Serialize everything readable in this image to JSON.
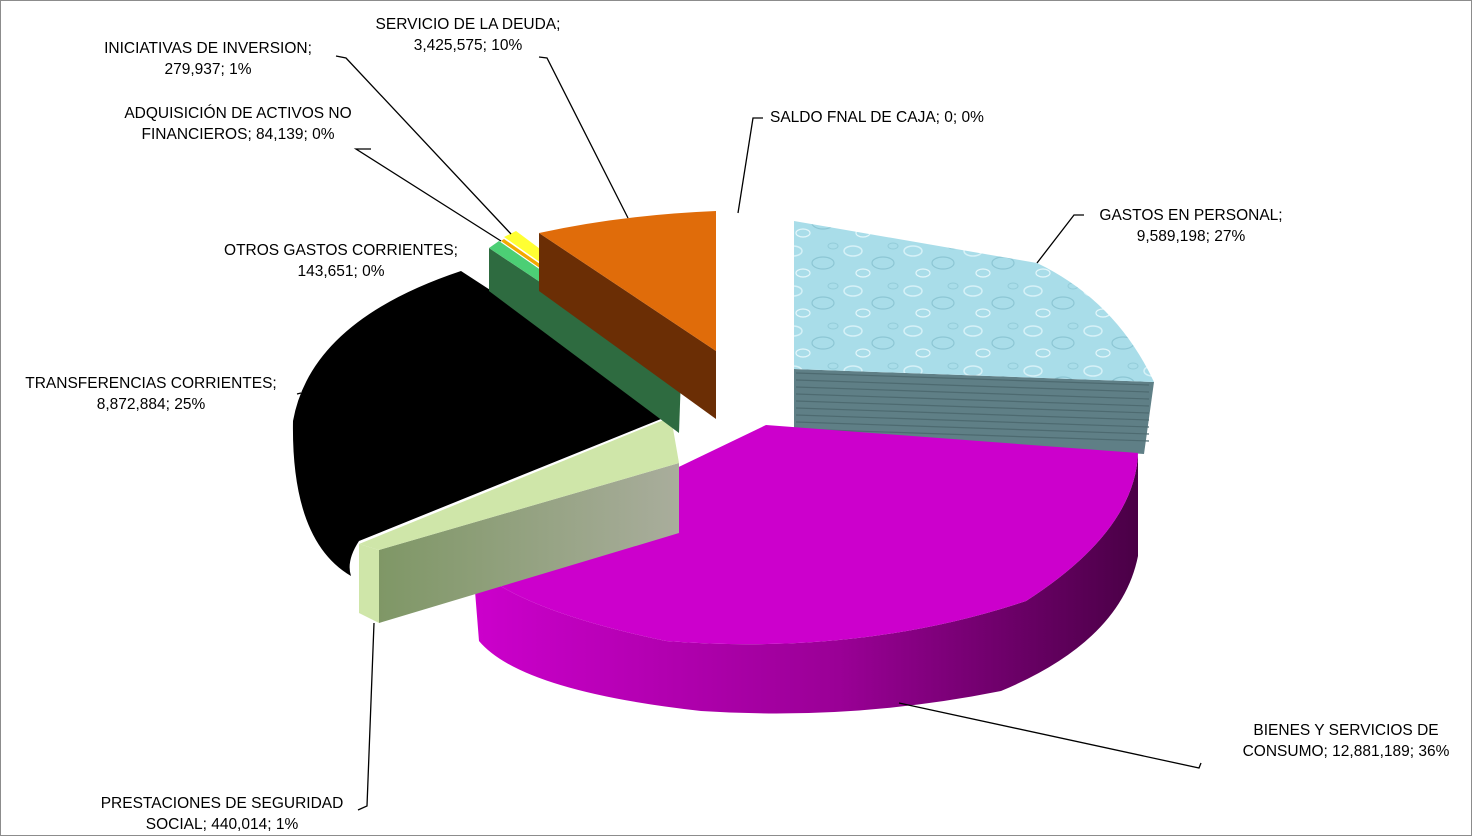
{
  "chart_data": {
    "type": "pie",
    "style": "3d exploded pie",
    "title": "",
    "legend": "none",
    "slices": [
      {
        "name": "GASTOS EN PERSONAL",
        "value": 9589198,
        "percent": 27,
        "label_lines": [
          "GASTOS EN PERSONAL;",
          "9,589,198; 27%"
        ],
        "color": "#a9dde9",
        "side_color": "#5f7f86"
      },
      {
        "name": "BIENES Y SERVICIOS DE CONSUMO",
        "value": 12881189,
        "percent": 36,
        "label_lines": [
          "BIENES Y SERVICIOS DE",
          "CONSUMO; 12,881,189; 36%"
        ],
        "color": "#cc00cc",
        "side_color": "#5c0058"
      },
      {
        "name": "PRESTACIONES DE SEGURIDAD SOCIAL",
        "value": 440014,
        "percent": 1,
        "label_lines": [
          "PRESTACIONES DE SEGURIDAD",
          "SOCIAL; 440,014; 1%"
        ],
        "color": "#cfe6a9",
        "side_color": "#8c9f78"
      },
      {
        "name": "TRANSFERENCIAS CORRIENTES",
        "value": 8872884,
        "percent": 25,
        "label_lines": [
          "TRANSFERENCIAS CORRIENTES;",
          "8,872,884; 25%"
        ],
        "color": "#000000",
        "side_color": "#000000"
      },
      {
        "name": "OTROS GASTOS CORRIENTES",
        "value": 143651,
        "percent": 0,
        "label_lines": [
          "OTROS GASTOS CORRIENTES;",
          "143,651; 0%"
        ],
        "color": "#4ccf75",
        "side_color": "#2e6b40"
      },
      {
        "name": "ADQUISICIÓN DE ACTIVOS NO FINANCIEROS",
        "value": 84139,
        "percent": 0,
        "label_lines": [
          "ADQUISICIÓN DE ACTIVOS NO",
          "FINANCIEROS; 84,139; 0%"
        ],
        "color": "#f2a900",
        "side_color": "#8a6000"
      },
      {
        "name": "INICIATIVAS DE INVERSION",
        "value": 279937,
        "percent": 1,
        "label_lines": [
          "INICIATIVAS DE INVERSION;",
          "279,937; 1%"
        ],
        "color": "#ffff33",
        "side_color": "#9a9a10"
      },
      {
        "name": "SERVICIO DE LA DEUDA",
        "value": 3425575,
        "percent": 10,
        "label_lines": [
          "SERVICIO DE LA DEUDA;",
          "3,425,575; 10%"
        ],
        "color": "#e06c0a",
        "side_color": "#6b2e05"
      },
      {
        "name": "SALDO FNAL DE CAJA",
        "value": 0,
        "percent": 0,
        "label_lines": [
          "SALDO FNAL DE CAJA; 0; 0%"
        ],
        "color": "#ffffff",
        "side_color": "#ffffff"
      }
    ]
  }
}
